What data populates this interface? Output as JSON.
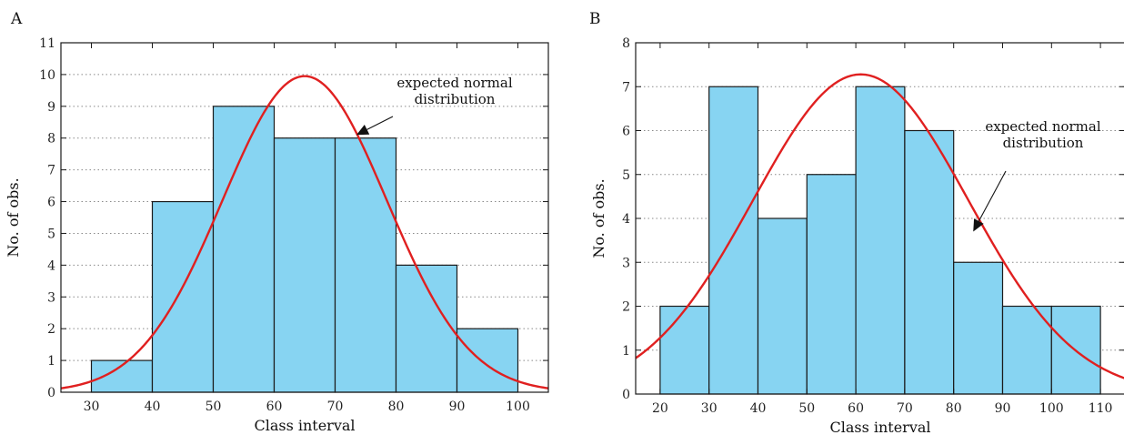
{
  "chart_data": [
    {
      "type": "bar",
      "panel_label": "A",
      "xlabel": "Class interval",
      "ylabel": "No. of obs.",
      "xlim": [
        25,
        105
      ],
      "ylim": [
        0,
        11
      ],
      "xticks": [
        30,
        40,
        50,
        60,
        70,
        80,
        90,
        100
      ],
      "yticks": [
        0,
        1,
        2,
        3,
        4,
        5,
        6,
        7,
        8,
        9,
        10,
        11
      ],
      "bins": [
        [
          30,
          40
        ],
        [
          40,
          50
        ],
        [
          50,
          60
        ],
        [
          60,
          70
        ],
        [
          70,
          80
        ],
        [
          80,
          90
        ],
        [
          90,
          100
        ]
      ],
      "values": [
        1,
        6,
        9,
        8,
        8,
        4,
        2
      ],
      "bar_color": "#87d4f2",
      "curve": {
        "label": "expected normal distribution",
        "mean": 65,
        "peak": 9.95,
        "sd": 13.5,
        "color": "#e02020"
      },
      "annotation": {
        "lines": [
          "expected normal",
          "distribution"
        ],
        "arrow_to": [
          73.5,
          8.1
        ]
      },
      "grid": "horizontal-dotted"
    },
    {
      "type": "bar",
      "panel_label": "B",
      "xlabel": "Class interval",
      "ylabel": "No. of obs.",
      "xlim": [
        15,
        115
      ],
      "ylim": [
        0,
        8
      ],
      "xticks": [
        20,
        30,
        40,
        50,
        60,
        70,
        80,
        90,
        100,
        110
      ],
      "yticks": [
        0,
        1,
        2,
        3,
        4,
        5,
        6,
        7,
        8
      ],
      "bins": [
        [
          20,
          30
        ],
        [
          30,
          40
        ],
        [
          40,
          50
        ],
        [
          50,
          60
        ],
        [
          60,
          70
        ],
        [
          70,
          80
        ],
        [
          80,
          90
        ],
        [
          90,
          100
        ],
        [
          100,
          110
        ]
      ],
      "values": [
        2,
        7,
        4,
        5,
        7,
        6,
        3,
        2,
        2
      ],
      "bar_color": "#87d4f2",
      "curve": {
        "label": "expected normal distribution",
        "mean": 61,
        "peak": 7.28,
        "sd": 22.0,
        "color": "#e02020"
      },
      "annotation": {
        "lines": [
          "expected normal",
          "distribution"
        ],
        "arrow_to": [
          84,
          3.7
        ]
      },
      "grid": "horizontal-dotted"
    }
  ]
}
